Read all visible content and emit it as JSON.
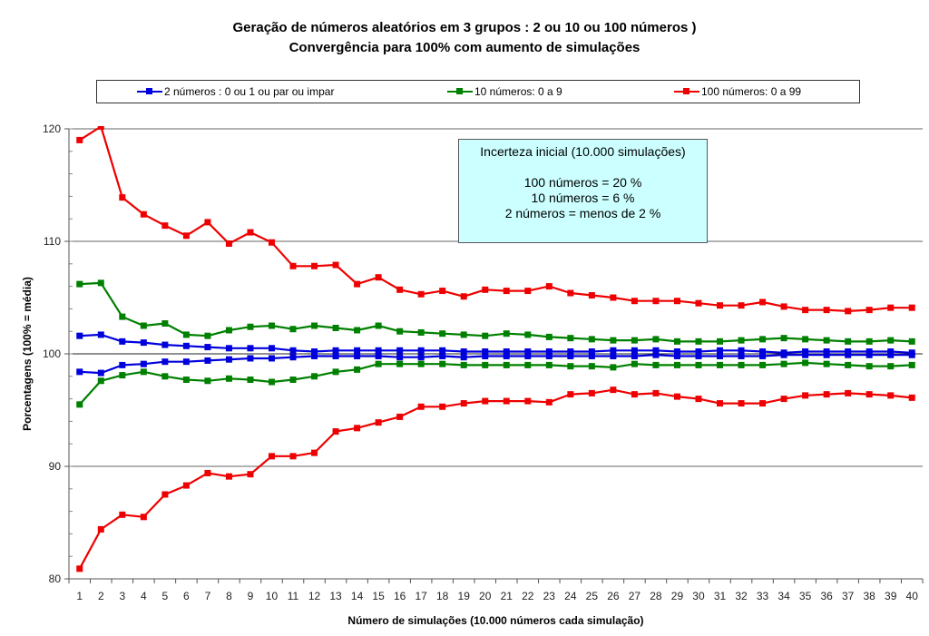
{
  "chart_data": {
    "type": "line",
    "title": "Geração de números aleatórios em 3 grupos : 2  ou  10  ou 100 números )",
    "subtitle": "Convergência para 100% com aumento de simulações",
    "xlabel": "Número de simulações  (10.000 números cada simulação)",
    "ylabel": "Porcentagens (100% = média)",
    "ylim": [
      80,
      120
    ],
    "yticks": [
      "80",
      "90",
      "100",
      "110",
      "120"
    ],
    "yminor_step": 2,
    "grid": true,
    "legend_position": "top",
    "categories": [
      "1",
      "2",
      "3",
      "4",
      "5",
      "6",
      "7",
      "8",
      "9",
      "10",
      "11",
      "12",
      "13",
      "14",
      "15",
      "16",
      "17",
      "18",
      "19",
      "20",
      "21",
      "22",
      "23",
      "24",
      "25",
      "26",
      "27",
      "28",
      "29",
      "30",
      "31",
      "32",
      "33",
      "34",
      "35",
      "36",
      "37",
      "38",
      "39",
      "40"
    ],
    "series": [
      {
        "name": "2 números : 0 ou 1   ou  par ou impar",
        "legend": "2 números : 0 ou 1   ou  par ou impar",
        "color": "#0000dd",
        "part": "upper",
        "values": [
          101.6,
          101.7,
          101.1,
          101.0,
          100.8,
          100.7,
          100.6,
          100.5,
          100.5,
          100.5,
          100.3,
          100.2,
          100.3,
          100.3,
          100.3,
          100.3,
          100.3,
          100.3,
          100.2,
          100.2,
          100.2,
          100.2,
          100.2,
          100.2,
          100.2,
          100.3,
          100.3,
          100.3,
          100.2,
          100.2,
          100.3,
          100.3,
          100.2,
          100.1,
          100.2,
          100.2,
          100.2,
          100.2,
          100.2,
          100.1
        ]
      },
      {
        "name": "2 números : 0 ou 1   ou  par ou impar",
        "color": "#0000dd",
        "part": "lower",
        "values": [
          98.4,
          98.3,
          99.0,
          99.1,
          99.3,
          99.3,
          99.4,
          99.5,
          99.6,
          99.6,
          99.7,
          99.8,
          99.8,
          99.8,
          99.8,
          99.7,
          99.7,
          99.8,
          99.7,
          99.8,
          99.8,
          99.8,
          99.8,
          99.8,
          99.8,
          99.8,
          99.8,
          99.9,
          99.8,
          99.8,
          99.8,
          99.8,
          99.8,
          99.9,
          99.9,
          99.9,
          99.9,
          99.9,
          99.9,
          99.9
        ]
      },
      {
        "name": "10 números: 0 a 9",
        "legend": "10 números: 0 a 9",
        "color": "#008000",
        "part": "upper",
        "values": [
          106.2,
          106.3,
          103.3,
          102.5,
          102.7,
          101.7,
          101.6,
          102.1,
          102.4,
          102.5,
          102.2,
          102.5,
          102.3,
          102.1,
          102.5,
          102.0,
          101.9,
          101.8,
          101.7,
          101.6,
          101.8,
          101.7,
          101.5,
          101.4,
          101.3,
          101.2,
          101.2,
          101.3,
          101.1,
          101.1,
          101.1,
          101.2,
          101.3,
          101.4,
          101.3,
          101.2,
          101.1,
          101.1,
          101.2,
          101.1
        ]
      },
      {
        "name": "10 números: 0 a 9",
        "color": "#008000",
        "part": "lower",
        "values": [
          95.5,
          97.6,
          98.1,
          98.4,
          98.0,
          97.7,
          97.6,
          97.8,
          97.7,
          97.5,
          97.7,
          98.0,
          98.4,
          98.6,
          99.1,
          99.1,
          99.1,
          99.1,
          99.0,
          99.0,
          99.0,
          99.0,
          99.0,
          98.9,
          98.9,
          98.8,
          99.1,
          99.0,
          99.0,
          99.0,
          99.0,
          99.0,
          99.0,
          99.1,
          99.2,
          99.1,
          99.0,
          98.9,
          98.9,
          99.0
        ]
      },
      {
        "name": "100 números: 0 a 99",
        "legend": "100 números: 0 a 99",
        "color": "#ee0000",
        "part": "upper",
        "values": [
          119.0,
          120.2,
          113.9,
          112.4,
          111.4,
          110.5,
          111.7,
          109.8,
          110.8,
          109.9,
          107.8,
          107.8,
          107.9,
          106.2,
          106.8,
          105.7,
          105.3,
          105.6,
          105.1,
          105.7,
          105.6,
          105.6,
          106.0,
          105.4,
          105.2,
          105.0,
          104.7,
          104.7,
          104.7,
          104.5,
          104.3,
          104.3,
          104.6,
          104.2,
          103.9,
          103.9,
          103.8,
          103.9,
          104.1,
          104.1
        ]
      },
      {
        "name": "100 números: 0 a 99",
        "color": "#ee0000",
        "part": "lower",
        "values": [
          80.9,
          84.4,
          85.7,
          85.5,
          87.5,
          88.3,
          89.4,
          89.1,
          89.3,
          90.9,
          90.9,
          91.2,
          93.1,
          93.4,
          93.9,
          94.4,
          95.3,
          95.3,
          95.6,
          95.8,
          95.8,
          95.8,
          95.7,
          96.4,
          96.5,
          96.8,
          96.4,
          96.5,
          96.2,
          96.0,
          95.6,
          95.6,
          95.6,
          96.0,
          96.3,
          96.4,
          96.5,
          96.4,
          96.3,
          96.1
        ]
      }
    ],
    "annotation": {
      "heading": "Incerteza inicial (10.000 simulações)",
      "lines": [
        "100 números = 20 %",
        "10 números = 6 %",
        "2 números = menos de 2 %"
      ],
      "background": "#ccffff"
    }
  }
}
